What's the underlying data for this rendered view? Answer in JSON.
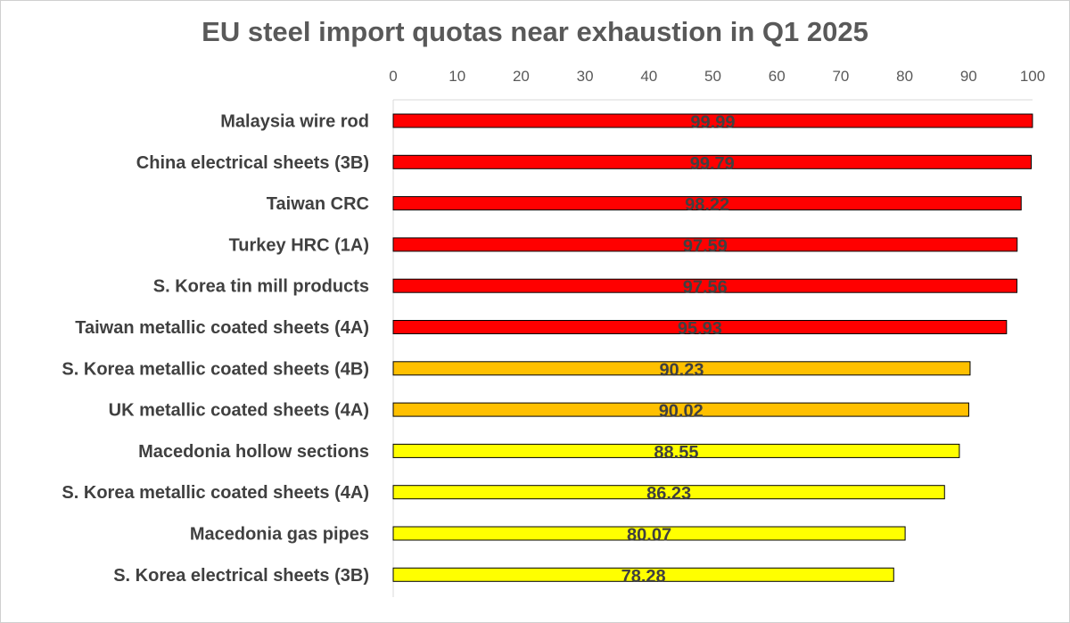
{
  "chart_data": {
    "type": "bar",
    "orientation": "horizontal",
    "title": "EU steel import quotas near exhaustion in Q1 2025",
    "xlabel": "",
    "ylabel": "",
    "xlim": [
      0,
      100
    ],
    "x_ticks": [
      0,
      10,
      20,
      30,
      40,
      50,
      60,
      70,
      80,
      90,
      100
    ],
    "x_axis_position": "top",
    "grid": false,
    "legend": "none",
    "categories": [
      "Malaysia wire rod",
      "China electrical sheets (3B)",
      "Taiwan CRC",
      "Turkey HRC (1A)",
      "S. Korea tin mill products",
      "Taiwan metallic coated sheets (4A)",
      "S. Korea metallic coated sheets (4B)",
      "UK metallic coated sheets (4A)",
      "Macedonia hollow sections",
      "S. Korea metallic coated sheets (4A)",
      "Macedonia gas pipes",
      "S. Korea electrical sheets (3B)"
    ],
    "values": [
      99.99,
      99.79,
      98.22,
      97.59,
      97.56,
      95.93,
      90.23,
      90.02,
      88.55,
      86.23,
      80.07,
      78.28
    ],
    "value_labels": [
      "99.99",
      "99.79",
      "98.22",
      "97.59",
      "97.56",
      "95.93",
      "90.23",
      "90.02",
      "88.55",
      "86.23",
      "80.07",
      "78.28"
    ],
    "bar_colors": [
      "#ff0000",
      "#ff0000",
      "#ff0000",
      "#ff0000",
      "#ff0000",
      "#ff0000",
      "#ffc000",
      "#ffc000",
      "#ffff00",
      "#ffff00",
      "#ffff00",
      "#ffff00"
    ]
  },
  "colors": {
    "title": "#595959",
    "axis_line": "#d9d9d9",
    "bar_outline": "#000000",
    "label_text": "#404040"
  }
}
